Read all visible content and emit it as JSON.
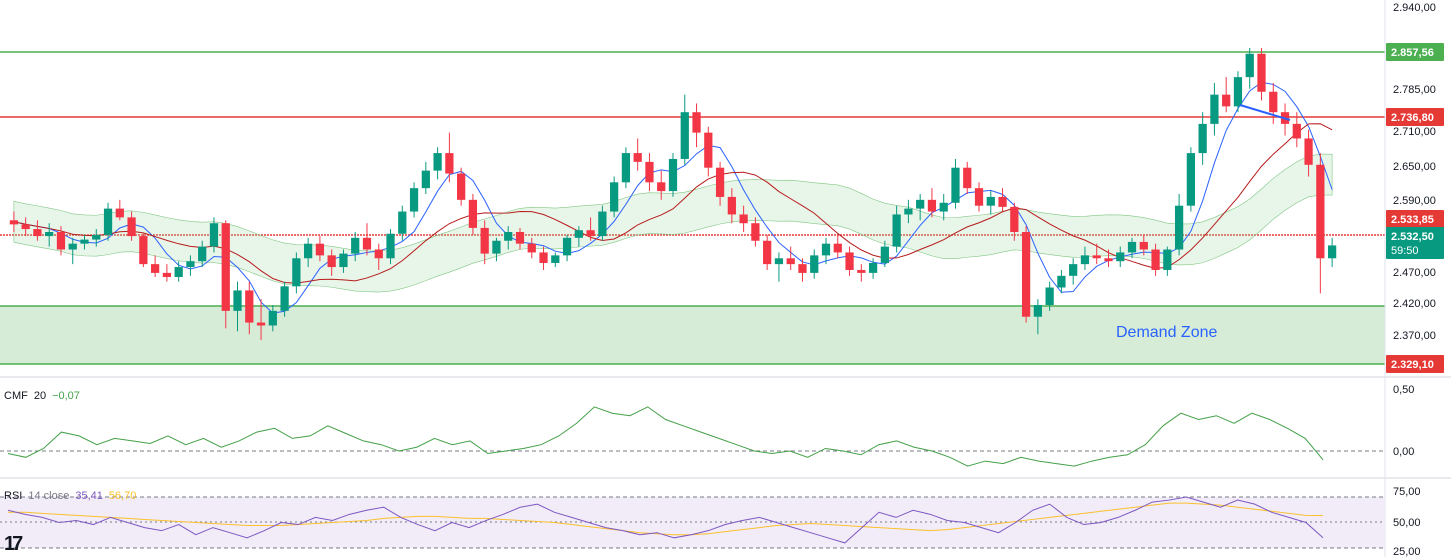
{
  "colors": {
    "up": "#089981",
    "down": "#f23645",
    "green_line": "#4caf50",
    "red_line": "#e53935",
    "blue_line": "#2962ff",
    "zone_fill": "#c8e6c9",
    "cmf_line": "#43a047",
    "rsi_line": "#7e57c2",
    "rsi_ma": "#fbc02d",
    "rsi_band": "#ede7f6"
  },
  "price_axis": {
    "ticks": [
      "2.940,00",
      "2.785,00",
      "2.710,00",
      "2.650,00",
      "2.590,00",
      "2.470,00",
      "2.420,00",
      "2.370,00"
    ]
  },
  "levels": {
    "resistance_2": "2.857,56",
    "resistance_1": "2.736,80",
    "pivot": "2.533,85",
    "current_price": "2.532,50",
    "countdown": "59:50",
    "support": "2.329,10"
  },
  "zone": {
    "label": "Demand Zone"
  },
  "cmf": {
    "name": "CMF",
    "length": "20",
    "value": "−0,07",
    "ticks": [
      "0,50",
      "0,00"
    ]
  },
  "rsi": {
    "name": "RSI",
    "params": "14 close",
    "value": "35,41",
    "ma_value": "56,70",
    "ticks": [
      "75,00",
      "50,00",
      "25,00"
    ]
  },
  "logo": {
    "text": "17"
  },
  "chart_data": {
    "type": "candlestick",
    "price_levels": {
      "resistance_2": 2857.56,
      "resistance_1": 2736.8,
      "pivot": 2533.85,
      "current": 2532.5,
      "support": 2329.1
    },
    "demand_zone": [
      2329.1,
      2420.0
    ],
    "ylim": [
      2300,
      2940
    ],
    "candles": [
      [
        2575,
        2590,
        2555,
        2568
      ],
      [
        2568,
        2580,
        2548,
        2560
      ],
      [
        2560,
        2575,
        2540,
        2548
      ],
      [
        2548,
        2570,
        2530,
        2555
      ],
      [
        2555,
        2565,
        2515,
        2525
      ],
      [
        2525,
        2545,
        2500,
        2535
      ],
      [
        2535,
        2550,
        2525,
        2542
      ],
      [
        2542,
        2560,
        2530,
        2550
      ],
      [
        2550,
        2605,
        2540,
        2595
      ],
      [
        2595,
        2610,
        2575,
        2580
      ],
      [
        2580,
        2590,
        2540,
        2548
      ],
      [
        2548,
        2552,
        2495,
        2500
      ],
      [
        2500,
        2515,
        2478,
        2485
      ],
      [
        2485,
        2500,
        2470,
        2478
      ],
      [
        2478,
        2505,
        2470,
        2495
      ],
      [
        2495,
        2515,
        2480,
        2505
      ],
      [
        2505,
        2540,
        2495,
        2530
      ],
      [
        2530,
        2580,
        2520,
        2570
      ],
      [
        2570,
        2575,
        2390,
        2420
      ],
      [
        2420,
        2470,
        2385,
        2455
      ],
      [
        2455,
        2470,
        2380,
        2400
      ],
      [
        2400,
        2440,
        2370,
        2395
      ],
      [
        2395,
        2430,
        2385,
        2420
      ],
      [
        2420,
        2470,
        2410,
        2462
      ],
      [
        2462,
        2520,
        2450,
        2510
      ],
      [
        2510,
        2545,
        2495,
        2535
      ],
      [
        2535,
        2548,
        2505,
        2515
      ],
      [
        2515,
        2525,
        2480,
        2495
      ],
      [
        2495,
        2525,
        2485,
        2518
      ],
      [
        2518,
        2555,
        2505,
        2545
      ],
      [
        2545,
        2570,
        2515,
        2525
      ],
      [
        2525,
        2535,
        2490,
        2510
      ],
      [
        2510,
        2560,
        2500,
        2552
      ],
      [
        2552,
        2600,
        2540,
        2590
      ],
      [
        2590,
        2640,
        2580,
        2630
      ],
      [
        2630,
        2675,
        2620,
        2660
      ],
      [
        2660,
        2700,
        2645,
        2690
      ],
      [
        2690,
        2725,
        2640,
        2655
      ],
      [
        2655,
        2665,
        2600,
        2610
      ],
      [
        2610,
        2620,
        2550,
        2562
      ],
      [
        2562,
        2575,
        2500,
        2518
      ],
      [
        2518,
        2545,
        2505,
        2540
      ],
      [
        2540,
        2565,
        2525,
        2555
      ],
      [
        2555,
        2562,
        2525,
        2535
      ],
      [
        2535,
        2545,
        2510,
        2520
      ],
      [
        2520,
        2530,
        2490,
        2502
      ],
      [
        2502,
        2520,
        2495,
        2515
      ],
      [
        2515,
        2550,
        2505,
        2545
      ],
      [
        2545,
        2565,
        2530,
        2558
      ],
      [
        2558,
        2580,
        2540,
        2548
      ],
      [
        2548,
        2600,
        2540,
        2590
      ],
      [
        2590,
        2650,
        2580,
        2640
      ],
      [
        2640,
        2700,
        2630,
        2690
      ],
      [
        2690,
        2715,
        2660,
        2675
      ],
      [
        2675,
        2690,
        2625,
        2640
      ],
      [
        2640,
        2660,
        2610,
        2625
      ],
      [
        2625,
        2690,
        2615,
        2680
      ],
      [
        2680,
        2790,
        2670,
        2760
      ],
      [
        2760,
        2775,
        2700,
        2725
      ],
      [
        2725,
        2735,
        2650,
        2665
      ],
      [
        2665,
        2675,
        2600,
        2615
      ],
      [
        2615,
        2630,
        2570,
        2585
      ],
      [
        2585,
        2600,
        2555,
        2570
      ],
      [
        2570,
        2580,
        2530,
        2540
      ],
      [
        2540,
        2550,
        2490,
        2500
      ],
      [
        2500,
        2520,
        2470,
        2510
      ],
      [
        2510,
        2530,
        2490,
        2500
      ],
      [
        2500,
        2510,
        2470,
        2485
      ],
      [
        2485,
        2525,
        2475,
        2515
      ],
      [
        2515,
        2545,
        2500,
        2535
      ],
      [
        2535,
        2550,
        2510,
        2520
      ],
      [
        2520,
        2530,
        2480,
        2490
      ],
      [
        2490,
        2500,
        2470,
        2485
      ],
      [
        2485,
        2510,
        2475,
        2502
      ],
      [
        2502,
        2540,
        2495,
        2530
      ],
      [
        2530,
        2600,
        2520,
        2585
      ],
      [
        2585,
        2610,
        2570,
        2595
      ],
      [
        2595,
        2620,
        2575,
        2610
      ],
      [
        2610,
        2630,
        2580,
        2590
      ],
      [
        2590,
        2620,
        2575,
        2605
      ],
      [
        2605,
        2680,
        2595,
        2665
      ],
      [
        2665,
        2675,
        2620,
        2630
      ],
      [
        2630,
        2640,
        2590,
        2600
      ],
      [
        2600,
        2625,
        2585,
        2615
      ],
      [
        2615,
        2630,
        2590,
        2598
      ],
      [
        2598,
        2605,
        2540,
        2555
      ],
      [
        2555,
        2565,
        2400,
        2410
      ],
      [
        2410,
        2440,
        2380,
        2430
      ],
      [
        2430,
        2470,
        2420,
        2460
      ],
      [
        2460,
        2490,
        2450,
        2480
      ],
      [
        2480,
        2510,
        2465,
        2500
      ],
      [
        2500,
        2530,
        2490,
        2515
      ],
      [
        2515,
        2535,
        2500,
        2510
      ],
      [
        2510,
        2525,
        2495,
        2505
      ],
      [
        2505,
        2530,
        2495,
        2520
      ],
      [
        2520,
        2545,
        2510,
        2538
      ],
      [
        2538,
        2550,
        2515,
        2525
      ],
      [
        2525,
        2535,
        2480,
        2490
      ],
      [
        2490,
        2530,
        2480,
        2525
      ],
      [
        2525,
        2620,
        2515,
        2600
      ],
      [
        2600,
        2700,
        2590,
        2690
      ],
      [
        2690,
        2760,
        2670,
        2740
      ],
      [
        2740,
        2810,
        2720,
        2790
      ],
      [
        2790,
        2820,
        2760,
        2770
      ],
      [
        2770,
        2830,
        2760,
        2820
      ],
      [
        2820,
        2870,
        2800,
        2860
      ],
      [
        2860,
        2870,
        2780,
        2795
      ],
      [
        2795,
        2810,
        2740,
        2760
      ],
      [
        2760,
        2775,
        2720,
        2740
      ],
      [
        2740,
        2760,
        2700,
        2715
      ],
      [
        2715,
        2730,
        2650,
        2670
      ],
      [
        2670,
        2690,
        2450,
        2510
      ],
      [
        2510,
        2545,
        2495,
        2532
      ]
    ],
    "cmf_series": [
      -0.02,
      -0.05,
      0.02,
      0.15,
      0.12,
      0.05,
      0.1,
      0.08,
      0.06,
      0.12,
      0.05,
      0.1,
      0.03,
      0.08,
      0.15,
      0.18,
      0.1,
      0.12,
      0.2,
      0.14,
      0.08,
      0.05,
      0.0,
      0.03,
      0.1,
      0.05,
      0.08,
      -0.02,
      0.0,
      0.02,
      0.05,
      0.12,
      0.22,
      0.35,
      0.3,
      0.28,
      0.35,
      0.25,
      0.2,
      0.15,
      0.1,
      0.05,
      0.0,
      -0.02,
      0.0,
      -0.05,
      0.02,
      0.0,
      -0.03,
      0.05,
      0.08,
      0.03,
      0.0,
      -0.05,
      -0.12,
      -0.08,
      -0.1,
      -0.05,
      -0.08,
      -0.1,
      -0.12,
      -0.08,
      -0.05,
      -0.03,
      0.05,
      0.2,
      0.3,
      0.25,
      0.28,
      0.22,
      0.3,
      0.25,
      0.18,
      0.1,
      -0.07
    ],
    "rsi_series": [
      62,
      58,
      55,
      50,
      52,
      48,
      55,
      50,
      45,
      42,
      48,
      38,
      45,
      40,
      35,
      42,
      50,
      48,
      55,
      52,
      58,
      62,
      65,
      55,
      48,
      42,
      50,
      45,
      52,
      58,
      65,
      68,
      60,
      55,
      50,
      45,
      42,
      38,
      40,
      35,
      38,
      42,
      48,
      52,
      55,
      50,
      45,
      40,
      35,
      30,
      45,
      60,
      55,
      62,
      58,
      52,
      50,
      45,
      40,
      50,
      62,
      68,
      55,
      48,
      50,
      55,
      62,
      70,
      72,
      75,
      70,
      65,
      72,
      68,
      60,
      55,
      50,
      35
    ],
    "rsi_ma_series": [
      60,
      60,
      59,
      58,
      57,
      56,
      55,
      54,
      53,
      52,
      51,
      50,
      49,
      48,
      47,
      47,
      47,
      48,
      49,
      50,
      51,
      52,
      54,
      55,
      56,
      56,
      55,
      54,
      54,
      53,
      52,
      51,
      50,
      48,
      46,
      44,
      42,
      40,
      39,
      38,
      38,
      39,
      41,
      43,
      45,
      47,
      48,
      49,
      48,
      47,
      46,
      45,
      44,
      43,
      42,
      43,
      45,
      47,
      49,
      51,
      53,
      55,
      57,
      59,
      61,
      63,
      65,
      67,
      69,
      69,
      68,
      67,
      65,
      63,
      61,
      59,
      57,
      56.7
    ]
  }
}
